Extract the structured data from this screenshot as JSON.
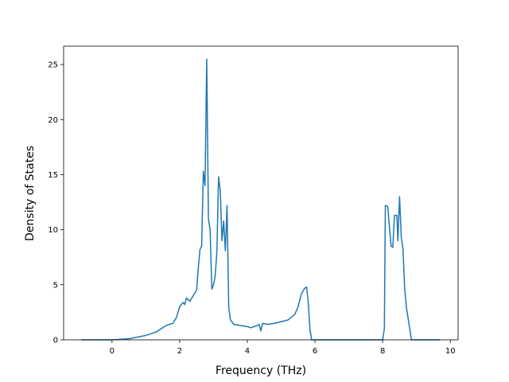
{
  "chart_data": {
    "type": "line",
    "xlabel": "Frequency (THz)",
    "ylabel": "Density of States",
    "x": [
      -0.9,
      0,
      0.5,
      1.0,
      1.3,
      1.6,
      1.8,
      1.9,
      2.0,
      2.1,
      2.15,
      2.2,
      2.3,
      2.4,
      2.5,
      2.55,
      2.6,
      2.65,
      2.7,
      2.75,
      2.8,
      2.85,
      2.9,
      2.95,
      3.0,
      3.05,
      3.1,
      3.15,
      3.2,
      3.25,
      3.3,
      3.35,
      3.4,
      3.45,
      3.5,
      3.6,
      4.0,
      4.1,
      4.3,
      4.35,
      4.4,
      4.45,
      4.6,
      4.8,
      5.2,
      5.4,
      5.5,
      5.6,
      5.7,
      5.75,
      5.8,
      5.85,
      5.9,
      6.0,
      8.0,
      8.05,
      8.08,
      8.15,
      8.25,
      8.3,
      8.35,
      8.42,
      8.45,
      8.5,
      8.55,
      8.6,
      8.65,
      8.7,
      8.8,
      8.85,
      9.7
    ],
    "values": [
      0,
      0,
      0.1,
      0.4,
      0.7,
      1.3,
      1.5,
      2,
      3,
      3.4,
      3.2,
      3.8,
      3.5,
      4,
      4.5,
      6.5,
      8.2,
      8.5,
      15.3,
      14,
      25.5,
      11,
      10,
      4.6,
      5,
      5.8,
      8,
      14.8,
      13.5,
      9,
      10.8,
      8.1,
      12.2,
      3,
      1.8,
      1.4,
      1.2,
      1.1,
      1.3,
      1.4,
      0.8,
      1.5,
      1.4,
      1.5,
      1.8,
      2.3,
      3,
      4.2,
      4.7,
      4.8,
      3.5,
      1.0,
      0,
      0,
      0,
      1.0,
      12.2,
      12.1,
      8.5,
      8.4,
      11.3,
      11.3,
      9,
      13,
      9.3,
      8.3,
      4.7,
      3,
      1,
      0,
      0
    ],
    "color": "#1f77b4",
    "xlim": [
      -1.43,
      10.23
    ],
    "xticks": [
      0,
      2,
      4,
      6,
      8,
      10
    ],
    "ylim": [
      0,
      26.67
    ],
    "yticks": [
      0,
      5,
      10,
      15,
      20,
      25
    ]
  }
}
